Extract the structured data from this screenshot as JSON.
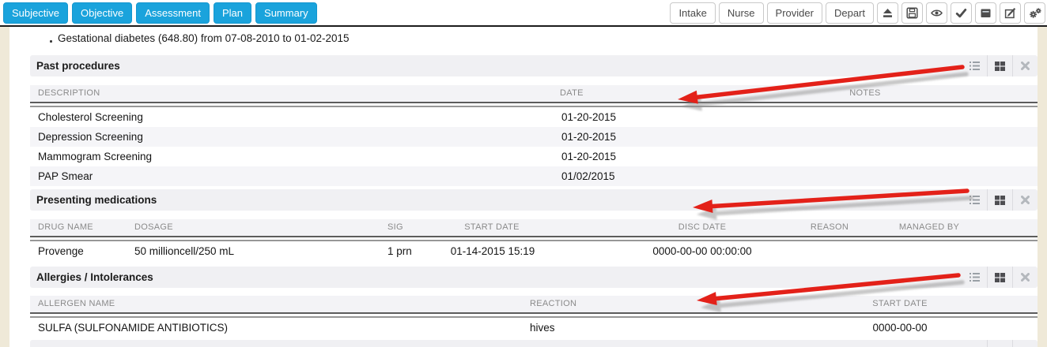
{
  "toolbar": {
    "tabs": [
      {
        "label": "Subjective"
      },
      {
        "label": "Objective"
      },
      {
        "label": "Assessment"
      },
      {
        "label": "Plan"
      },
      {
        "label": "Summary"
      }
    ],
    "tab_color": "#1aa3dc",
    "buttons": [
      {
        "label": "Intake"
      },
      {
        "label": "Nurse"
      },
      {
        "label": "Provider"
      },
      {
        "label": "Depart"
      }
    ],
    "icon_buttons": [
      "eject-icon",
      "save-icon",
      "eye-icon",
      "check-icon",
      "archive-icon",
      "edit-icon",
      "gears-icon"
    ]
  },
  "problem_note": {
    "text": "Gestational diabetes (648.80) from 07-08-2010 to 01-02-2015"
  },
  "sections": {
    "past_procedures": {
      "title": "Past procedures",
      "columns": [
        "DESCRIPTION",
        "DATE",
        "NOTES"
      ],
      "rows": [
        {
          "description": "Cholesterol Screening",
          "date": "01-20-2015",
          "notes": ""
        },
        {
          "description": "Depression Screening",
          "date": "01-20-2015",
          "notes": ""
        },
        {
          "description": "Mammogram Screening",
          "date": "01-20-2015",
          "notes": ""
        },
        {
          "description": "PAP Smear",
          "date": "01/02/2015",
          "notes": ""
        }
      ]
    },
    "presenting_medications": {
      "title": "Presenting medications",
      "columns": [
        "DRUG NAME",
        "DOSAGE",
        "SIG",
        "START DATE",
        "DISC DATE",
        "REASON",
        "MANAGED BY"
      ],
      "rows": [
        {
          "drug_name": "Provenge",
          "dosage": "50 millioncell/250 mL",
          "sig": "1 prn",
          "start_date": "01-14-2015 15:19",
          "disc_date": "0000-00-00 00:00:00",
          "reason": "",
          "managed_by": ""
        }
      ]
    },
    "allergies": {
      "title": "Allergies / Intolerances",
      "columns": [
        "ALLERGEN NAME",
        "REACTION",
        "START DATE"
      ],
      "rows": [
        {
          "allergen_name": "SULFA (SULFONAMIDE ANTIBIOTICS)",
          "reaction": "hives",
          "start_date": "0000-00-00"
        }
      ]
    }
  },
  "annotations": {
    "arrow_color": "#e32119",
    "arrow_shadow_color": "#8f8f8f"
  }
}
